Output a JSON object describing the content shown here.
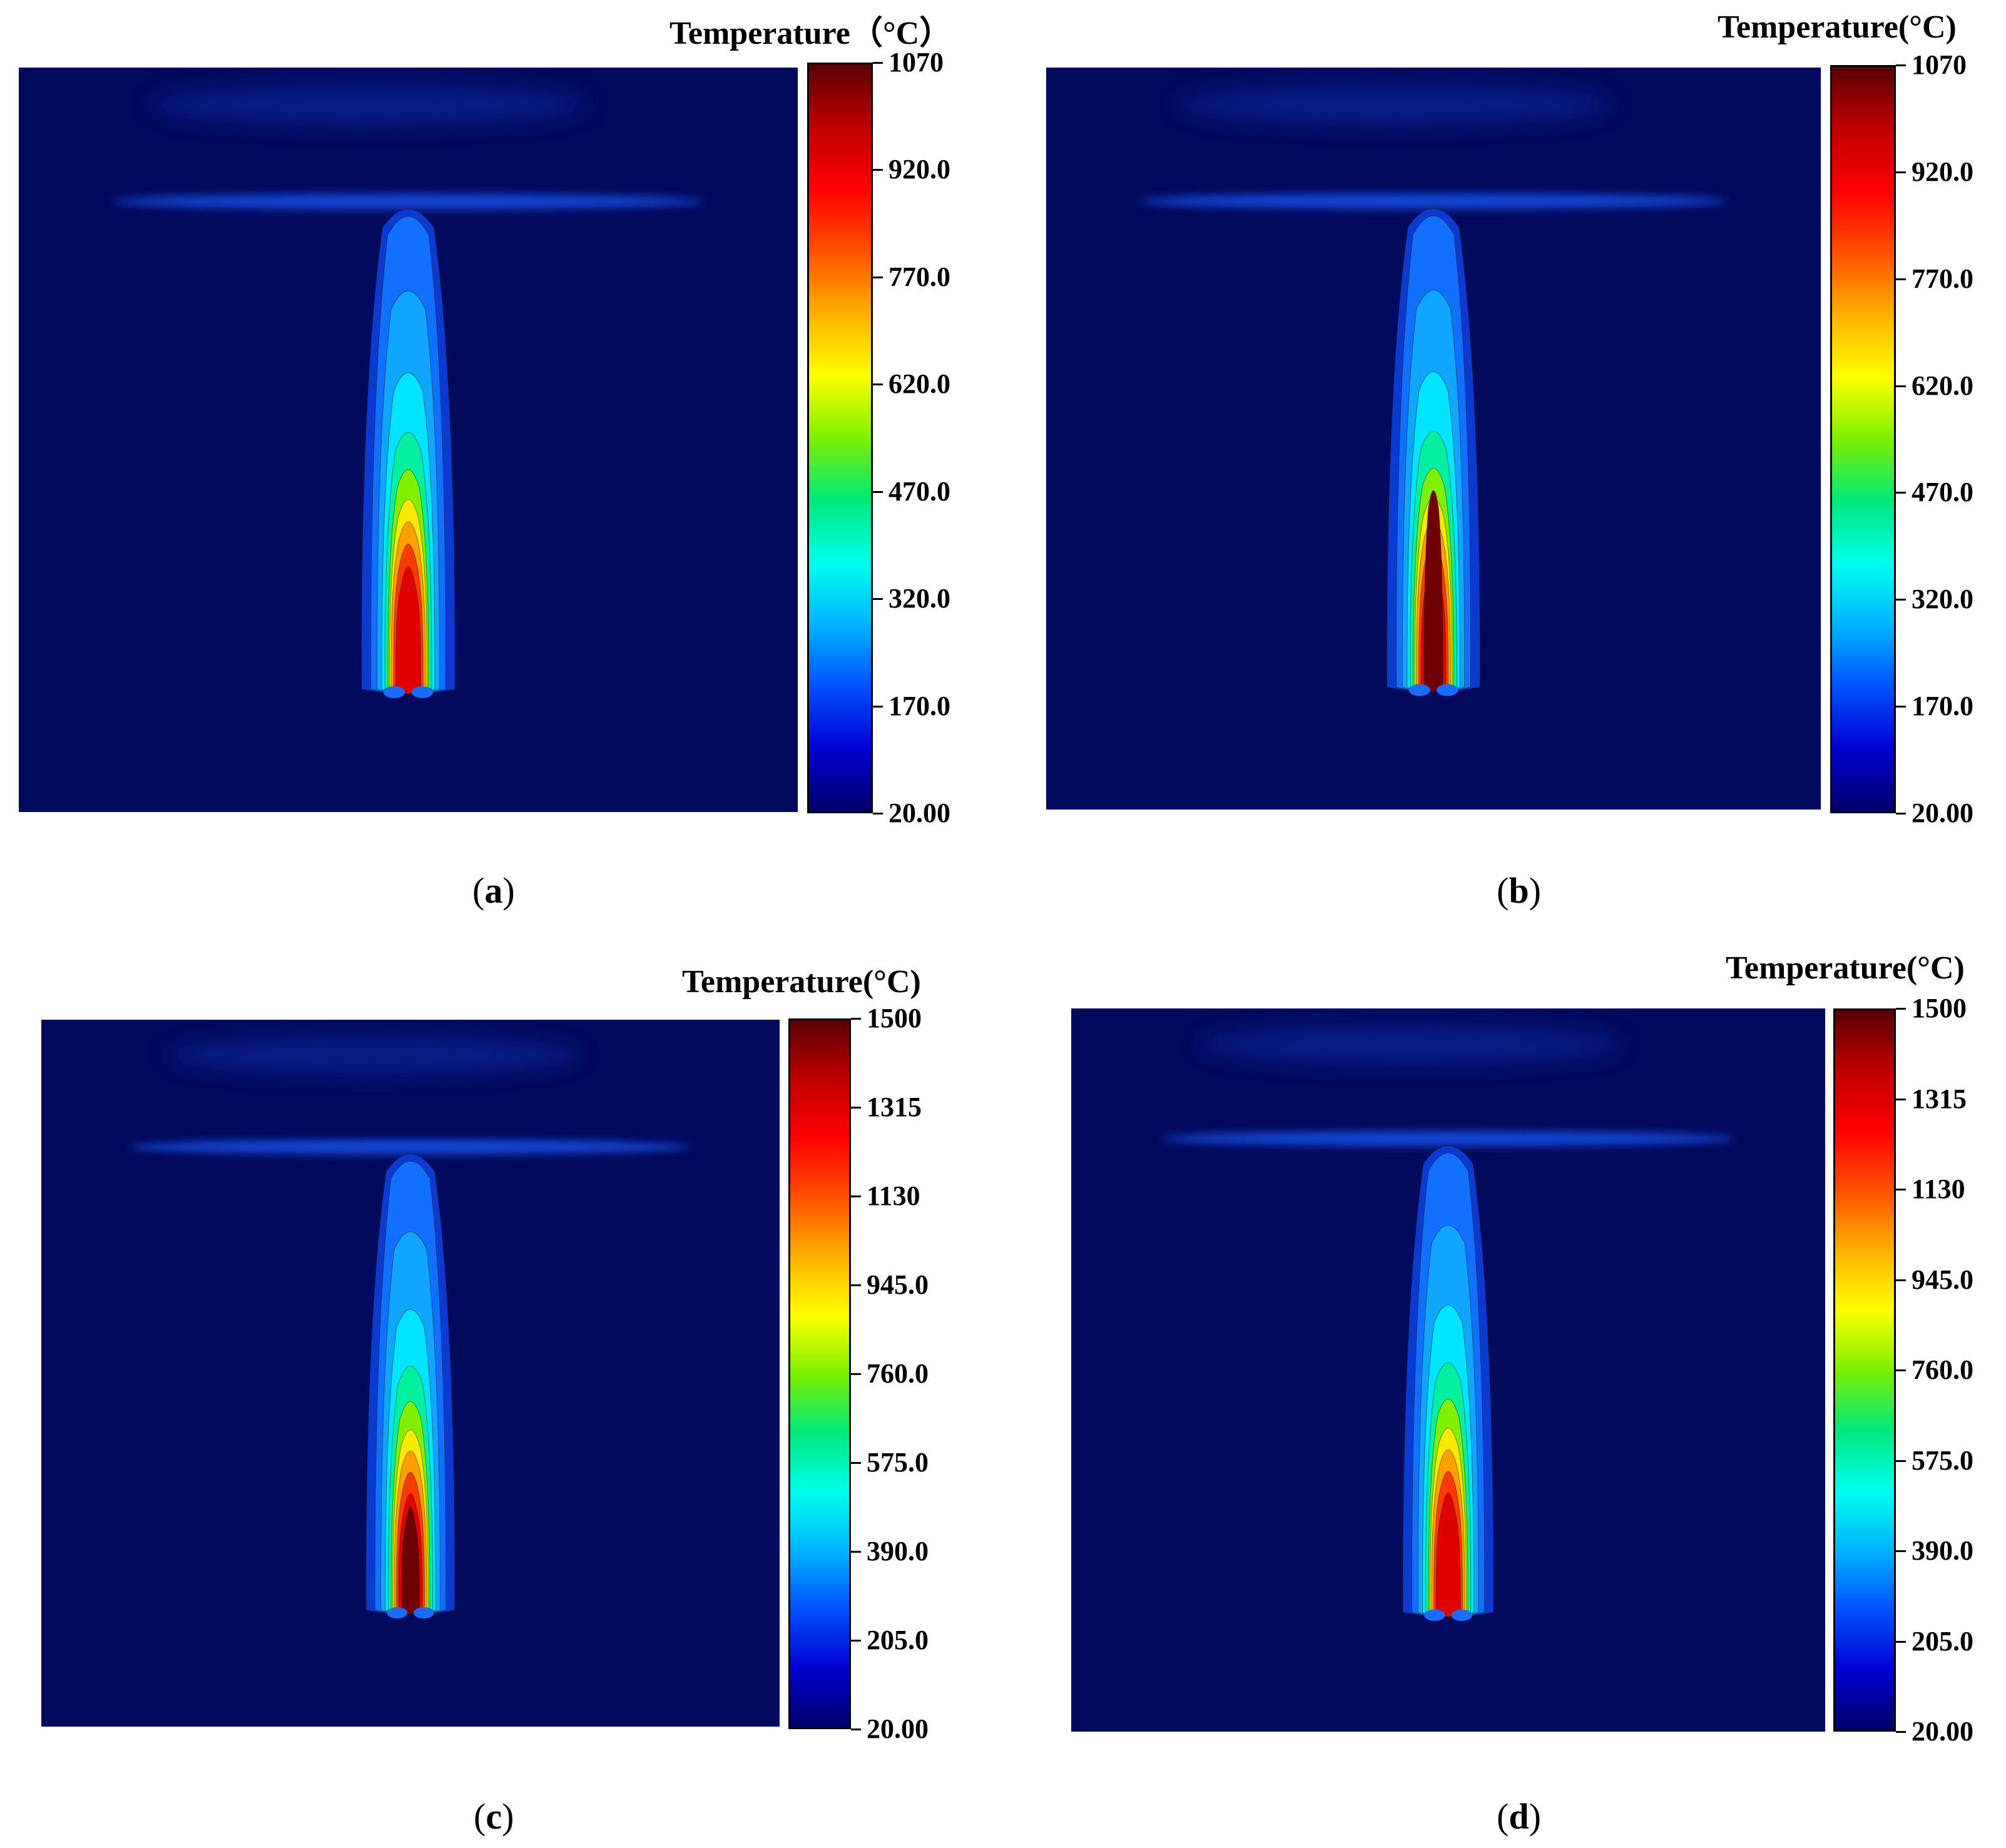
{
  "colors": {
    "background_field": "#020a5e",
    "colormap": [
      "#00006a",
      "#0000d0",
      "#0050ff",
      "#00b4ff",
      "#00ffee",
      "#00e87a",
      "#7cf000",
      "#ffff00",
      "#ffb000",
      "#ff5000",
      "#ff0000",
      "#c00000",
      "#5a0000"
    ]
  },
  "chart_data": [
    {
      "type": "heatmap",
      "panel_label": "(a)",
      "colorbar_title": "Temperature（°C）",
      "colorbar_ticks": [
        "1070",
        "920.0",
        "770.0",
        "620.0",
        "470.0",
        "320.0",
        "170.0",
        "20.00"
      ],
      "value_range": [
        20,
        1070
      ],
      "max_tip_fraction": 0.9
    },
    {
      "type": "heatmap",
      "panel_label": "(b)",
      "colorbar_title": "Temperature(°C)",
      "colorbar_ticks": [
        "1070",
        "920.0",
        "770.0",
        "620.0",
        "470.0",
        "320.0",
        "170.0",
        "20.00"
      ],
      "value_range": [
        20,
        1070
      ],
      "max_tip_fraction": 1.0
    },
    {
      "type": "heatmap",
      "panel_label": "(c)",
      "colorbar_title": "Temperature(°C)",
      "colorbar_ticks": [
        "1500",
        "1315",
        "1130",
        "945.0",
        "760.0",
        "575.0",
        "390.0",
        "205.0",
        "20.00"
      ],
      "value_range": [
        20,
        1500
      ],
      "max_tip_fraction": 0.95
    },
    {
      "type": "heatmap",
      "panel_label": "(d)",
      "colorbar_title": "Temperature(°C)",
      "colorbar_ticks": [
        "1500",
        "1315",
        "1130",
        "945.0",
        "760.0",
        "575.0",
        "390.0",
        "205.0",
        "20.00"
      ],
      "value_range": [
        20,
        1500
      ],
      "max_tip_fraction": 0.9
    }
  ]
}
